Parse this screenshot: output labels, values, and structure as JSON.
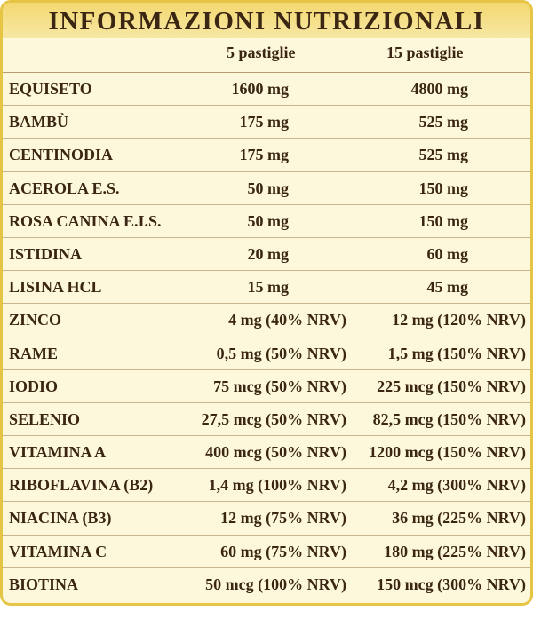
{
  "header": {
    "title": "INFORMAZIONI NUTRIZIONALI"
  },
  "table": {
    "columns": [
      "5 pastiglie",
      "15 pastiglie"
    ],
    "rows": [
      [
        "EQUISETO",
        "1600 mg",
        "4800 mg"
      ],
      [
        "BAMBÙ",
        "175 mg",
        "525 mg"
      ],
      [
        "CENTINODIA",
        "175 mg",
        "525 mg"
      ],
      [
        "ACEROLA E.S.",
        "50 mg",
        "150 mg"
      ],
      [
        "ROSA CANINA E.I.S.",
        "50 mg",
        "150 mg"
      ],
      [
        "ISTIDINA",
        "20 mg",
        "60 mg"
      ],
      [
        "LISINA HCL",
        "15 mg",
        "45 mg"
      ],
      [
        "ZINCO",
        "4 mg (40% NRV)",
        "12 mg (120% NRV)"
      ],
      [
        "RAME",
        "0,5 mg (50% NRV)",
        "1,5 mg (150% NRV)"
      ],
      [
        "IODIO",
        "75 mcg (50% NRV)",
        "225 mcg (150% NRV)"
      ],
      [
        "SELENIO",
        "27,5 mcg (50% NRV)",
        "82,5 mcg (150% NRV)"
      ],
      [
        "VITAMINA A",
        "400 mcg (50% NRV)",
        "1200 mcg (150% NRV)"
      ],
      [
        "RIBOFLAVINA (B2)",
        "1,4 mg (100% NRV)",
        "4,2 mg (300% NRV)"
      ],
      [
        "NIACINA (B3)",
        "12 mg (75% NRV)",
        "36 mg (225% NRV)"
      ],
      [
        "VITAMINA C",
        "60 mg (75% NRV)",
        "180 mg (225% NRV)"
      ],
      [
        "BIOTINA",
        "50 mcg (100% NRV)",
        "150 mcg (300% NRV)"
      ]
    ]
  }
}
